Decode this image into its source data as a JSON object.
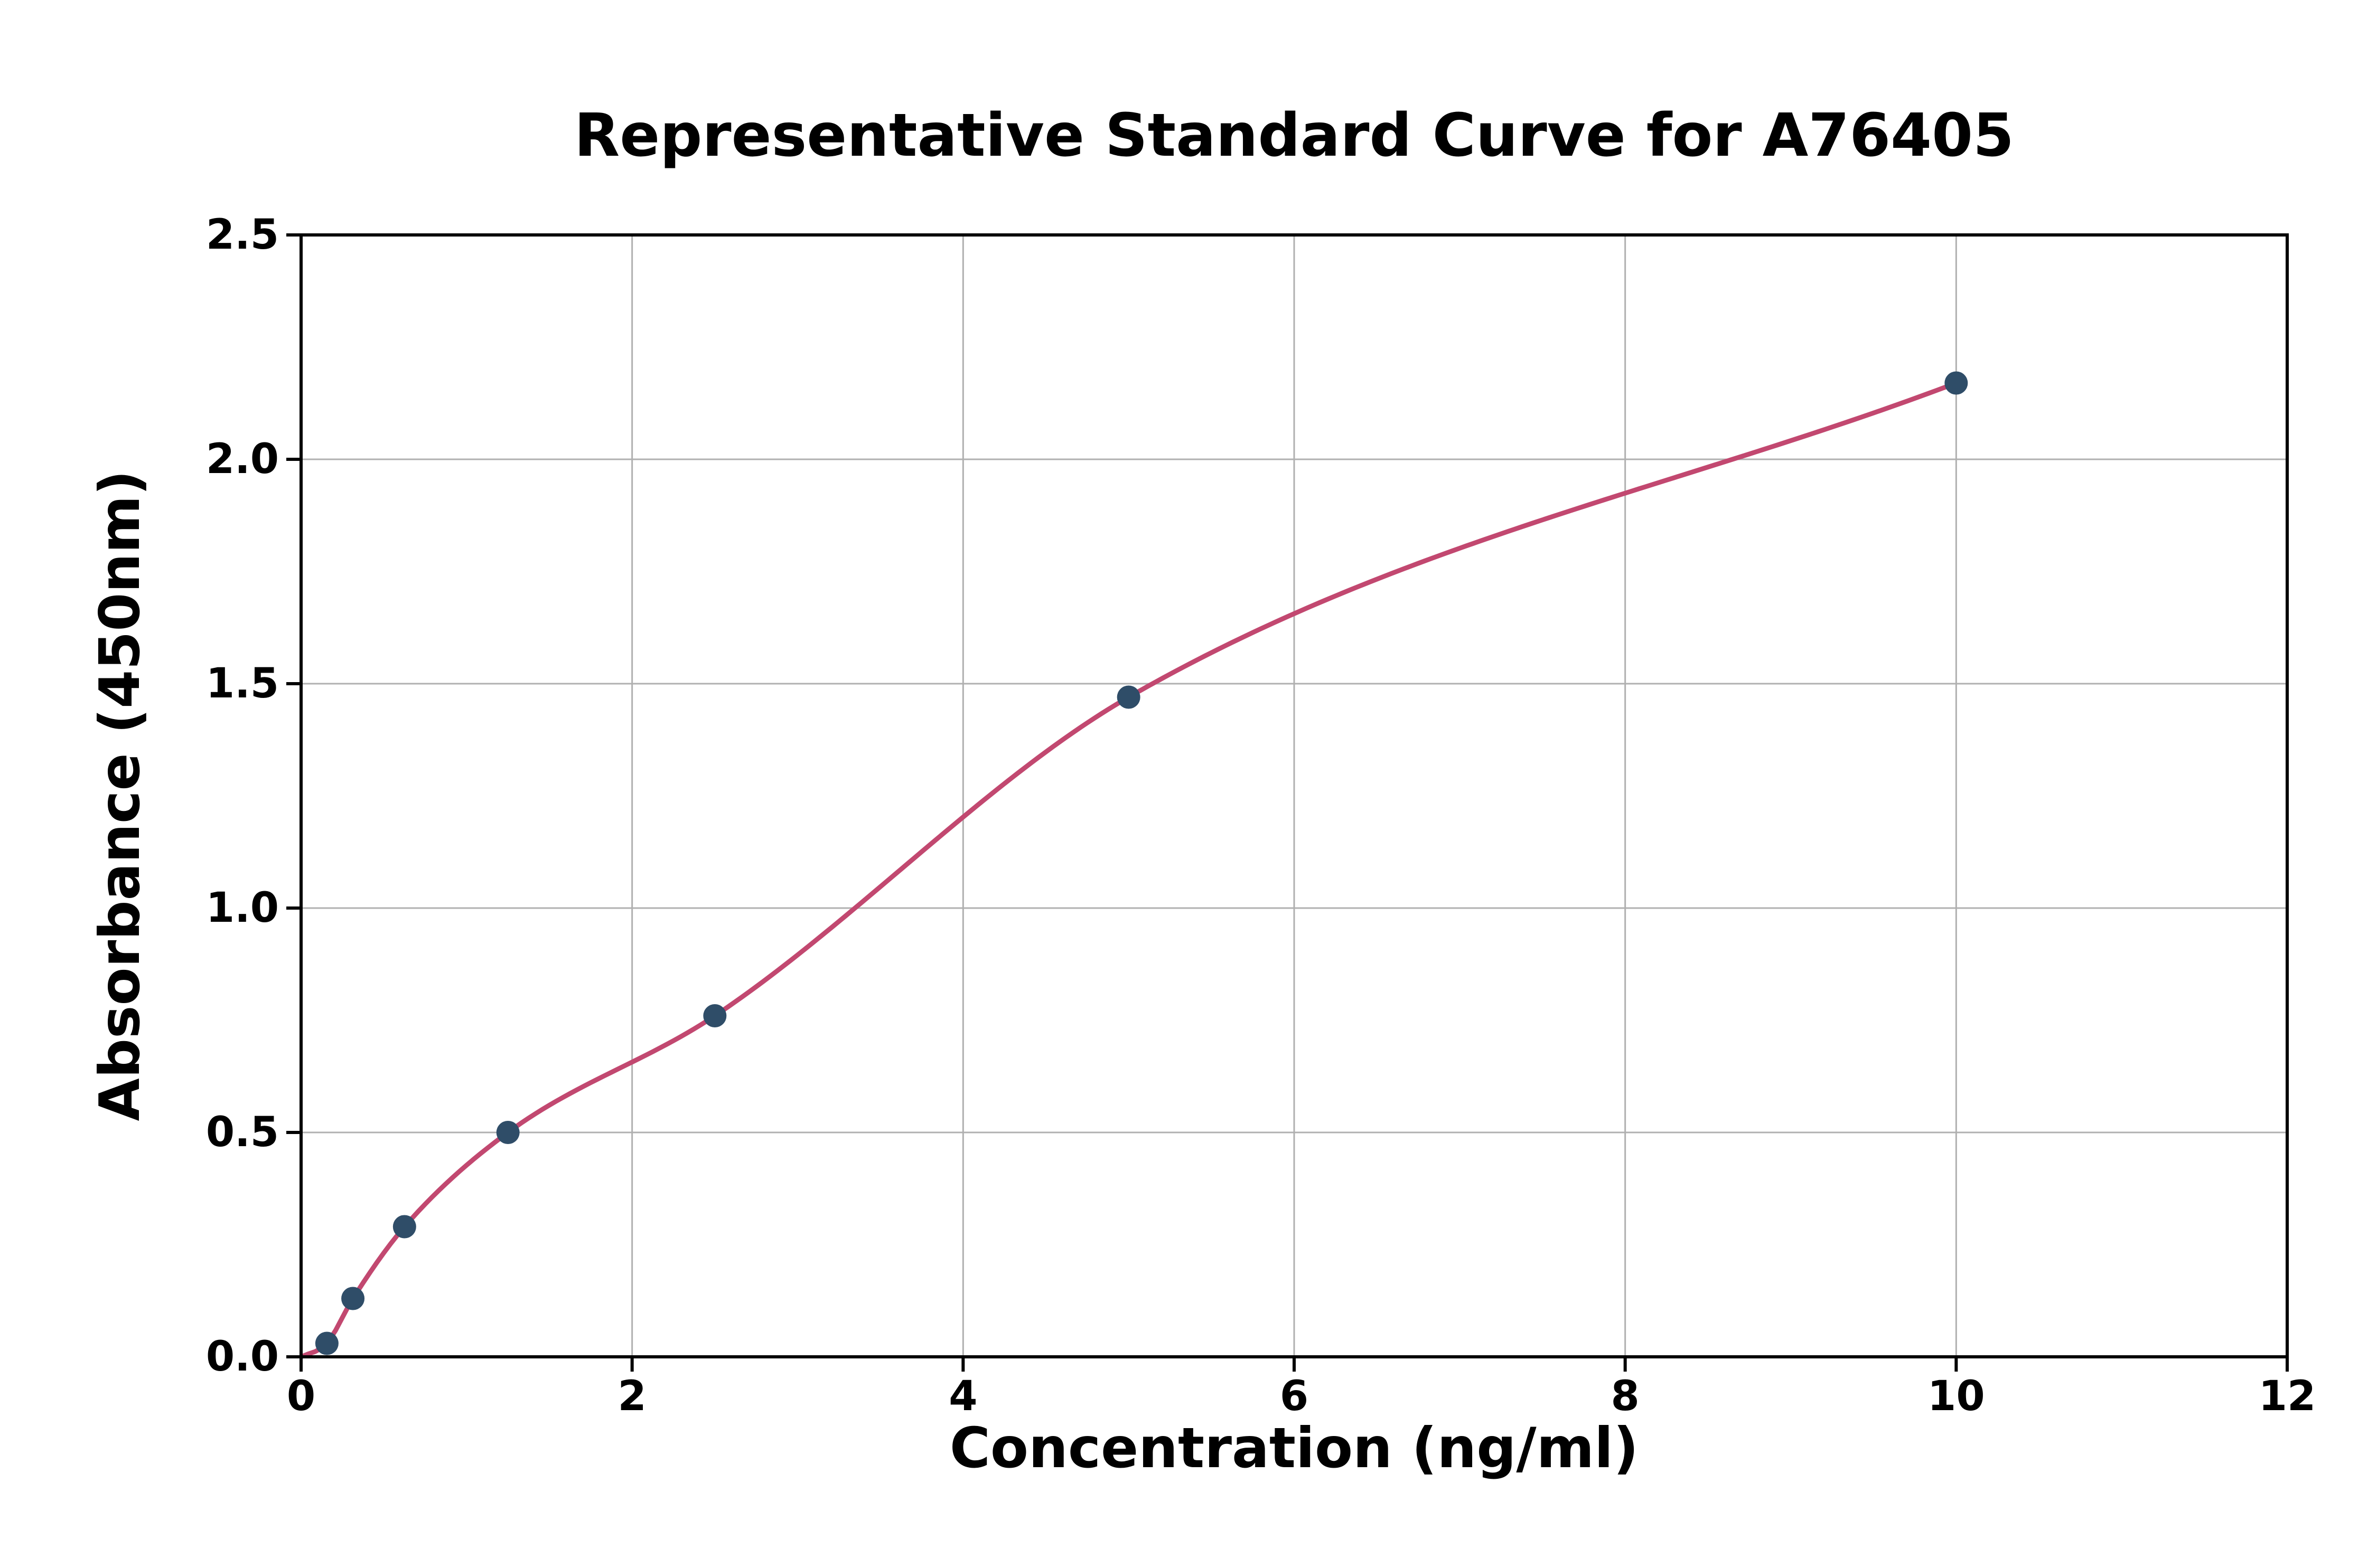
{
  "chart_data": {
    "type": "scatter",
    "title": "Representative Standard Curve for A76405",
    "xlabel": "Concentration (ng/ml)",
    "ylabel": "Absorbance (450nm)",
    "xlim": [
      0,
      12
    ],
    "ylim": [
      0,
      2.5
    ],
    "x_ticks": [
      0,
      2,
      4,
      6,
      8,
      10,
      12
    ],
    "x_tick_labels": [
      "0",
      "2",
      "4",
      "6",
      "8",
      "10",
      "12"
    ],
    "y_ticks": [
      0.0,
      0.5,
      1.0,
      1.5,
      2.0,
      2.5
    ],
    "y_tick_labels": [
      "0.0",
      "0.5",
      "1.0",
      "1.5",
      "2.0",
      "2.5"
    ],
    "grid": true,
    "legend": "none",
    "points": [
      {
        "x": 0.156,
        "y": 0.03
      },
      {
        "x": 0.313,
        "y": 0.13
      },
      {
        "x": 0.625,
        "y": 0.29
      },
      {
        "x": 1.25,
        "y": 0.5
      },
      {
        "x": 2.5,
        "y": 0.76
      },
      {
        "x": 5.0,
        "y": 1.47
      },
      {
        "x": 10.0,
        "y": 2.17
      }
    ],
    "curve_start": {
      "x": 0,
      "y": 0.0
    },
    "colors": {
      "point": "#2f4d68",
      "curve": "#c24870",
      "grid": "#b0b0b0",
      "axis": "#000000",
      "background": "#ffffff"
    }
  }
}
